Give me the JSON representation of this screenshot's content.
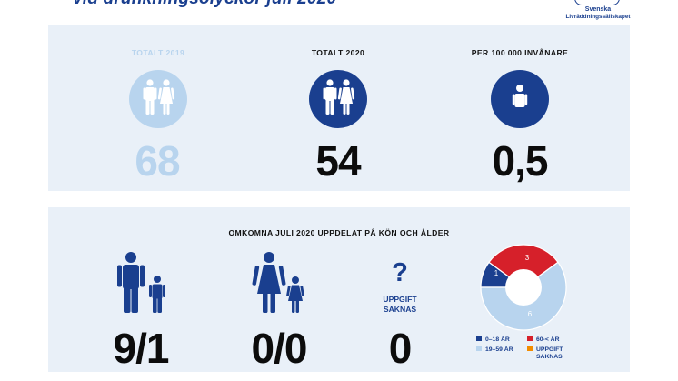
{
  "header": {
    "title": "vid drunkningsolyckor juli 2020"
  },
  "logo": {
    "line1": "Svenska",
    "line2": "Livräddningssällskapet"
  },
  "stats": [
    {
      "label": "TOTALT 2019",
      "value": "68"
    },
    {
      "label": "TOTALT 2020",
      "value": "54"
    },
    {
      "label": "PER 100 000 INVÅNARE",
      "value": "0,5"
    }
  ],
  "breakdown": {
    "title": "OMKOMNA JULI 2020 UPPDELAT PÅ KÖN OCH ÅLDER",
    "men": "9/1",
    "women": "0/0",
    "unknown_symbol": "?",
    "unknown_line1": "UPPGIFT",
    "unknown_line2": "SAKNAS",
    "unknown_value": "0"
  },
  "donut": {
    "segments": [
      {
        "label": "0–18 ÅR",
        "value": 1,
        "color": "#1a3f8f"
      },
      {
        "label": "60-< ÅR",
        "value": 3,
        "color": "#d6202a"
      },
      {
        "label": "19–59 ÅR",
        "value": 6,
        "color": "#b8d4ee"
      },
      {
        "label": "UPPGIFT SAKNAS",
        "value": 0,
        "color": "#f28c00"
      }
    ],
    "legend": {
      "a": "0–18 ÅR",
      "b": "60-< ÅR",
      "c": "19–59 ÅR",
      "d1": "UPPGIFT",
      "d2": "SAKNAS"
    }
  },
  "colors": {
    "navy": "#1a3f8f",
    "light_blue": "#b8d4ee",
    "panel_bg": "#e9f0f8",
    "red": "#d6202a",
    "orange": "#f28c00"
  }
}
